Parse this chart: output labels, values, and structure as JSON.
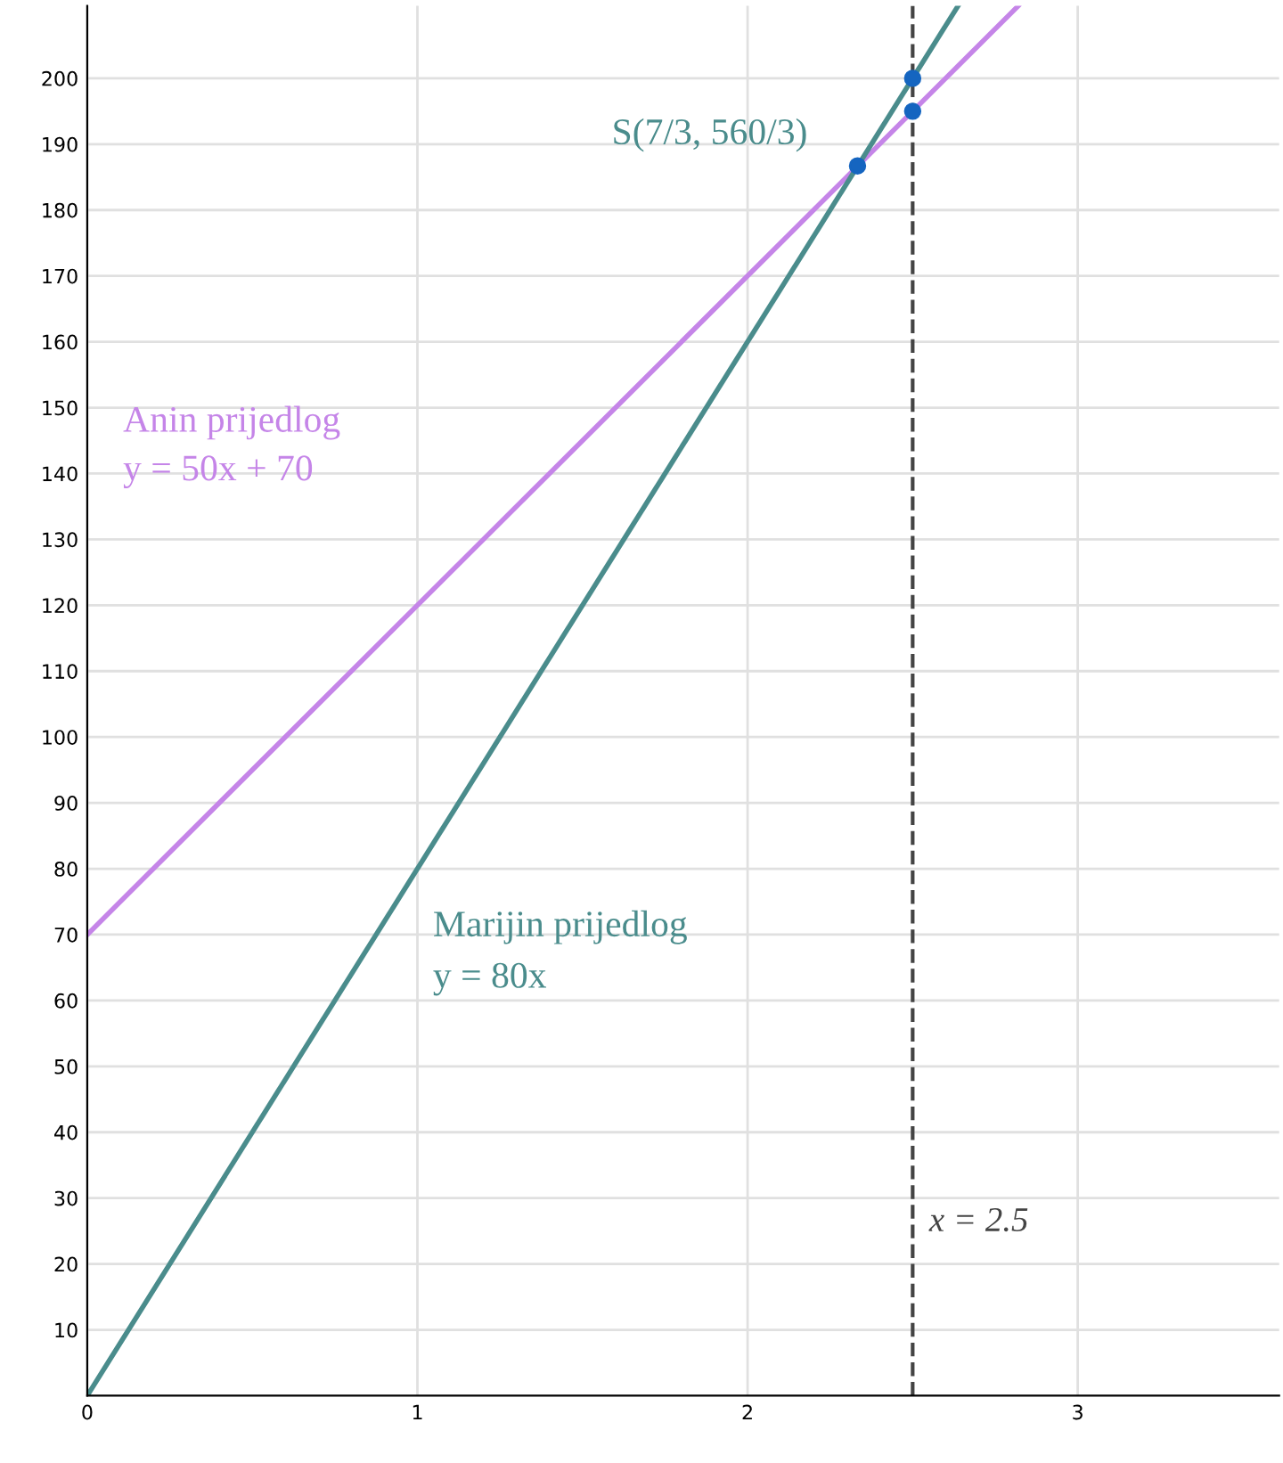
{
  "chart_data": {
    "type": "line",
    "xlim": [
      0,
      3.61
    ],
    "ylim": [
      0,
      211
    ],
    "xticks": [
      0,
      1,
      2,
      3
    ],
    "yticks": [
      10,
      20,
      30,
      40,
      50,
      60,
      70,
      80,
      90,
      100,
      110,
      120,
      130,
      140,
      150,
      160,
      170,
      180,
      190,
      200
    ],
    "grid": true,
    "legend": false,
    "series": [
      {
        "color": "#c585e8",
        "x": [
          0,
          2.82
        ],
        "values": [
          70,
          211
        ]
      },
      {
        "color": "#4a8c8c",
        "x": [
          0,
          2.6375
        ],
        "values": [
          0,
          211
        ]
      },
      {
        "type": "scatter",
        "color": "#1565c0",
        "marker": "circle",
        "x": [
          2.333,
          2.5,
          2.5
        ],
        "values": [
          186.7,
          200,
          195
        ]
      }
    ],
    "ref_lines": [
      {
        "axis": "x",
        "value": 2.5,
        "label": "x = 2.5",
        "color": "#444444",
        "line_style": "dashed"
      }
    ],
    "annotations": [
      "Anin prijedlog",
      "y = 50x + 70",
      "Marijin prijedlog",
      "y = 80x",
      "S(7/3, 560/3)"
    ]
  }
}
